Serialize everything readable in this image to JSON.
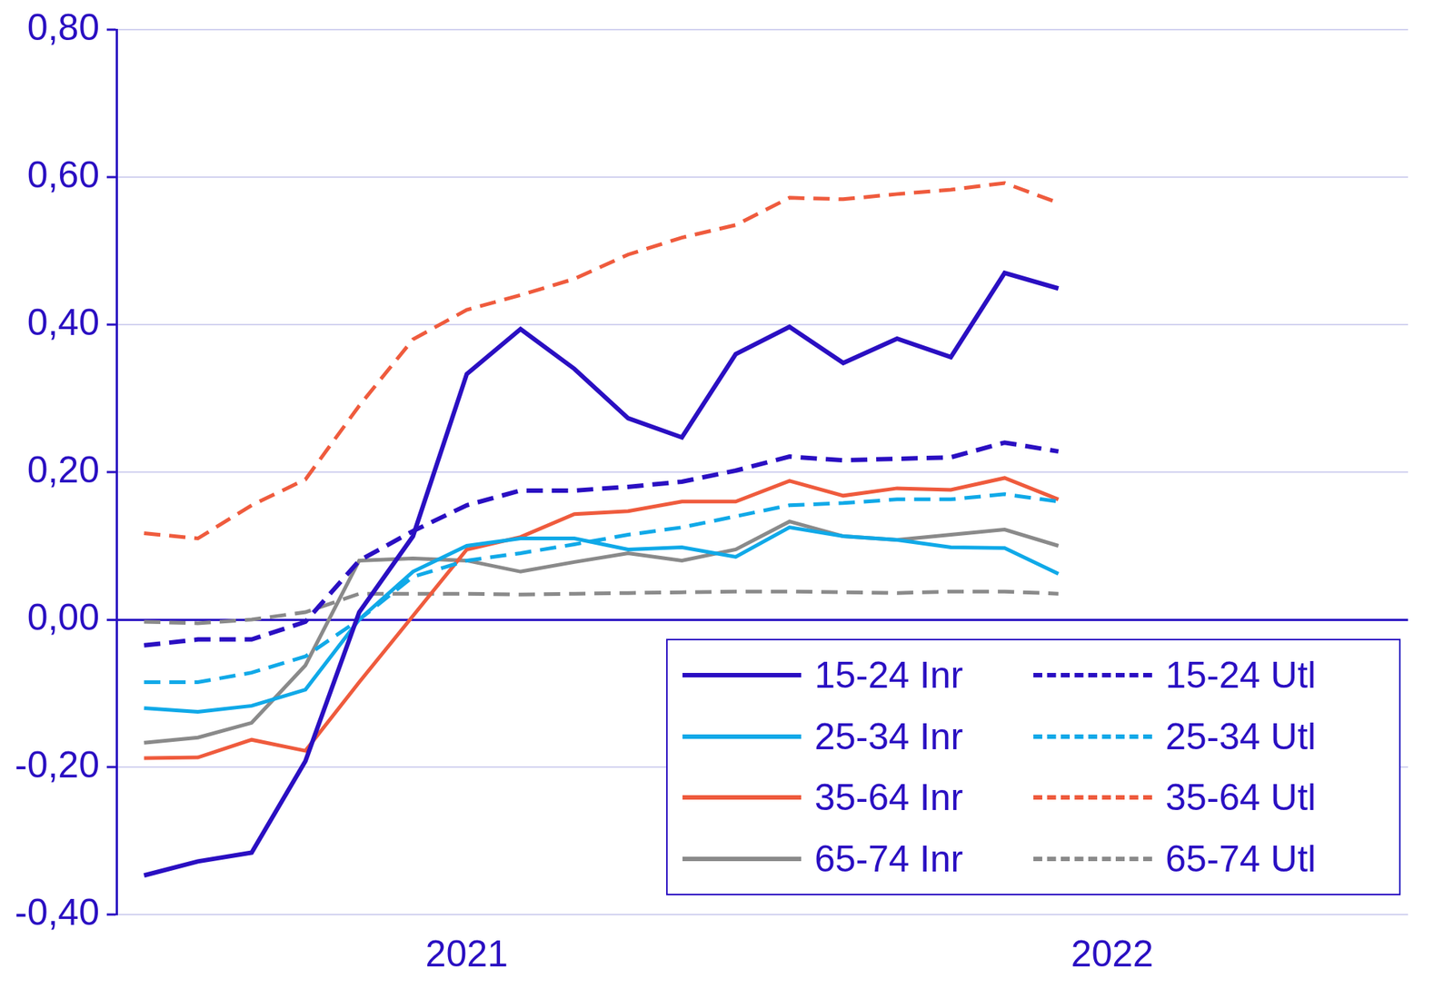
{
  "chart_data": {
    "type": "line",
    "categories": [
      null,
      null,
      null,
      null,
      null,
      null,
      "2021",
      null,
      null,
      null,
      null,
      null,
      null,
      null,
      null,
      null,
      null,
      null,
      "2022",
      null,
      null,
      null,
      null,
      null
    ],
    "series": [
      {
        "name": "15-24 Inr",
        "color": "#2a0fc2",
        "line_style": "solid",
        "values": [
          -0.347,
          -0.328,
          -0.316,
          -0.192,
          0.01,
          0.113,
          0.333,
          0.394,
          0.34,
          0.273,
          0.247,
          0.36,
          0.397,
          0.348,
          0.381,
          0.356,
          0.47,
          0.449,
          null,
          null,
          null,
          null,
          null,
          null
        ]
      },
      {
        "name": "15-24 Utl",
        "color": "#2a0fc2",
        "line_style": "dashed",
        "values": [
          -0.035,
          -0.027,
          -0.027,
          -0.003,
          0.08,
          0.12,
          0.155,
          0.175,
          0.175,
          0.18,
          0.187,
          0.202,
          0.221,
          0.216,
          0.218,
          0.22,
          0.24,
          0.228,
          null,
          null,
          null,
          null,
          null,
          null
        ]
      },
      {
        "name": "25-34 Inr",
        "color": "#10a9e8",
        "line_style": "solid",
        "values": [
          -0.12,
          -0.125,
          -0.117,
          -0.095,
          0.0,
          0.065,
          0.1,
          0.11,
          0.11,
          0.095,
          0.098,
          0.085,
          0.125,
          0.113,
          0.108,
          0.098,
          0.097,
          0.062,
          null,
          null,
          null,
          null,
          null,
          null
        ]
      },
      {
        "name": "25-34 Utl",
        "color": "#10a9e8",
        "line_style": "dashed",
        "values": [
          -0.085,
          -0.085,
          -0.072,
          -0.05,
          0.0,
          0.058,
          0.08,
          0.09,
          0.102,
          0.115,
          0.125,
          0.14,
          0.155,
          0.158,
          0.163,
          0.163,
          0.17,
          0.16,
          null,
          null,
          null,
          null,
          null,
          null
        ]
      },
      {
        "name": "35-64 Inr",
        "color": "#ef5b3d",
        "line_style": "solid",
        "values": [
          -0.188,
          -0.187,
          -0.163,
          -0.178,
          -0.085,
          0.005,
          0.095,
          0.112,
          0.143,
          0.147,
          0.16,
          0.16,
          0.188,
          0.168,
          0.178,
          0.176,
          0.192,
          0.163,
          null,
          null,
          null,
          null,
          null,
          null
        ]
      },
      {
        "name": "35-64 Utl",
        "color": "#ef5b3d",
        "line_style": "dashed",
        "values": [
          0.117,
          0.11,
          0.155,
          0.19,
          0.29,
          0.38,
          0.42,
          0.44,
          0.462,
          0.495,
          0.518,
          0.535,
          0.572,
          0.57,
          0.577,
          0.583,
          0.592,
          0.565,
          null,
          null,
          null,
          null,
          null,
          null
        ]
      },
      {
        "name": "65-74 Inr",
        "color": "#8a8a8a",
        "line_style": "solid",
        "values": [
          -0.167,
          -0.16,
          -0.14,
          -0.062,
          0.08,
          0.083,
          0.08,
          0.065,
          0.078,
          0.09,
          0.08,
          0.095,
          0.133,
          0.113,
          0.108,
          0.115,
          0.122,
          0.1,
          null,
          null,
          null,
          null,
          null,
          null
        ]
      },
      {
        "name": "65-74 Utl",
        "color": "#8a8a8a",
        "line_style": "dashed",
        "values": [
          -0.003,
          -0.005,
          0.0,
          0.01,
          0.035,
          0.035,
          0.035,
          0.034,
          0.035,
          0.036,
          0.037,
          0.038,
          0.038,
          0.037,
          0.036,
          0.038,
          0.038,
          0.035,
          null,
          null,
          null,
          null,
          null,
          null
        ]
      }
    ],
    "ylim": [
      -0.4,
      0.8
    ],
    "yticks": [
      {
        "value": -0.4,
        "label": "-0,40"
      },
      {
        "value": -0.2,
        "label": "-0,20"
      },
      {
        "value": 0,
        "label": "0,00"
      },
      {
        "value": 0.2,
        "label": "0,20"
      },
      {
        "value": 0.4,
        "label": "0,40"
      },
      {
        "value": 0.6,
        "label": "0,60"
      },
      {
        "value": 0.8,
        "label": "0,80"
      }
    ],
    "grid": true,
    "legend": "bottom right"
  }
}
